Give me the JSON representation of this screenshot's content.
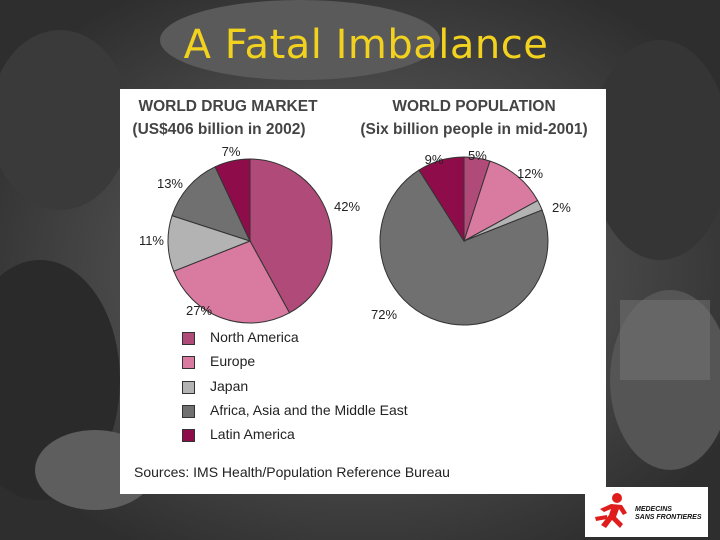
{
  "slide": {
    "title": "A Fatal Imbalance"
  },
  "chart_data": [
    {
      "type": "pie",
      "title": "WORLD DRUG MARKET",
      "subtitle": "(US$406 billion in 2002)",
      "categories": [
        "North America",
        "Europe",
        "Japan",
        "Africa, Asia and the Middle East",
        "Latin America"
      ],
      "values": [
        42,
        27,
        11,
        13,
        7
      ],
      "value_labels": [
        "42%",
        "27%",
        "11%",
        "13%",
        "7%"
      ]
    },
    {
      "type": "pie",
      "title": "WORLD POPULATION",
      "subtitle": "(Six billion people in mid-2001)",
      "categories": [
        "North America",
        "Europe",
        "Japan",
        "Africa, Asia and the Middle East",
        "Latin America"
      ],
      "values": [
        5,
        12,
        2,
        72,
        9
      ],
      "value_labels": [
        "5%",
        "12%",
        "2%",
        "72%",
        "9%"
      ]
    }
  ],
  "legend": [
    {
      "label": "North America",
      "color": "#b04a78"
    },
    {
      "label": "Europe",
      "color": "#d97aa0"
    },
    {
      "label": "Japan",
      "color": "#b3b3b3"
    },
    {
      "label": "Africa, Asia and the Middle East",
      "color": "#707070"
    },
    {
      "label": "Latin America",
      "color": "#8e0c4a"
    }
  ],
  "source": "Sources: IMS Health/Population Reference Bureau",
  "logo": {
    "icon": "msf-runner-logo",
    "line1": "MEDECINS",
    "line2": "SANS FRONTIERES",
    "color": "#e01d1d"
  }
}
